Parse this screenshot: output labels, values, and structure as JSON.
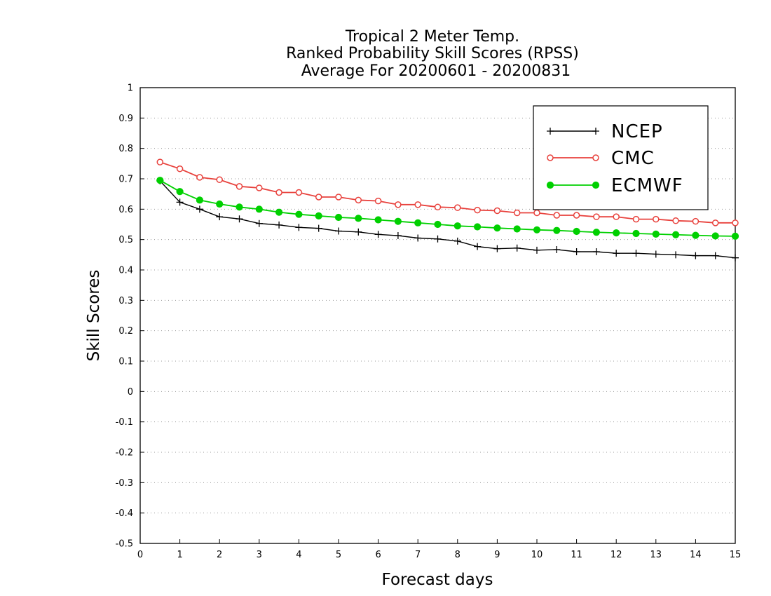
{
  "chart_data": {
    "type": "line",
    "title_lines": [
      "Tropical 2 Meter Temp.",
      "Ranked Probability Skill Scores (RPSS)",
      "Average For 20200601 - 20200831"
    ],
    "xlabel": "Forecast days",
    "ylabel": "Skill Scores",
    "xlim": [
      0,
      15
    ],
    "ylim": [
      -0.5,
      1
    ],
    "x_ticks": [
      "0",
      "1",
      "2",
      "3",
      "4",
      "5",
      "6",
      "7",
      "8",
      "9",
      "10",
      "11",
      "12",
      "13",
      "14",
      "15"
    ],
    "y_ticks": [
      "1",
      "0.9",
      "0.8",
      "0.7",
      "0.6",
      "0.5",
      "0.4",
      "0.3",
      "0.2",
      "0.1",
      "0",
      "-0.1",
      "-0.2",
      "-0.3",
      "-0.4",
      "-0.5"
    ],
    "grid": "horizontal dotted",
    "legend_position": "top-right",
    "x": [
      0.5,
      1,
      1.5,
      2,
      2.5,
      3,
      3.5,
      4,
      4.5,
      5,
      5.5,
      6,
      6.5,
      7,
      7.5,
      8,
      8.5,
      9,
      9.5,
      10,
      10.5,
      11,
      11.5,
      12,
      12.5,
      13,
      13.5,
      14,
      14.5,
      15
    ],
    "series": [
      {
        "name": "NCEP",
        "color": "#000000",
        "marker": "plus",
        "values": [
          0.693,
          0.623,
          0.6,
          0.575,
          0.568,
          0.553,
          0.548,
          0.54,
          0.537,
          0.528,
          0.525,
          0.517,
          0.513,
          0.505,
          0.502,
          0.495,
          0.477,
          0.47,
          0.472,
          0.465,
          0.467,
          0.46,
          0.46,
          0.455,
          0.455,
          0.452,
          0.45,
          0.447,
          0.447,
          0.44
        ]
      },
      {
        "name": "CMC",
        "color": "#e8413c",
        "marker": "open-circle",
        "values": [
          0.755,
          0.733,
          0.705,
          0.697,
          0.675,
          0.67,
          0.655,
          0.655,
          0.64,
          0.64,
          0.63,
          0.627,
          0.615,
          0.615,
          0.607,
          0.605,
          0.597,
          0.595,
          0.588,
          0.588,
          0.58,
          0.58,
          0.575,
          0.575,
          0.567,
          0.567,
          0.562,
          0.56,
          0.555,
          0.555
        ]
      },
      {
        "name": "ECMWF",
        "color": "#00d000",
        "marker": "filled-circle",
        "values": [
          0.695,
          0.658,
          0.63,
          0.617,
          0.607,
          0.6,
          0.59,
          0.583,
          0.578,
          0.573,
          0.57,
          0.565,
          0.56,
          0.555,
          0.55,
          0.545,
          0.542,
          0.538,
          0.535,
          0.532,
          0.53,
          0.527,
          0.524,
          0.522,
          0.52,
          0.518,
          0.516,
          0.514,
          0.512,
          0.511
        ]
      }
    ]
  }
}
